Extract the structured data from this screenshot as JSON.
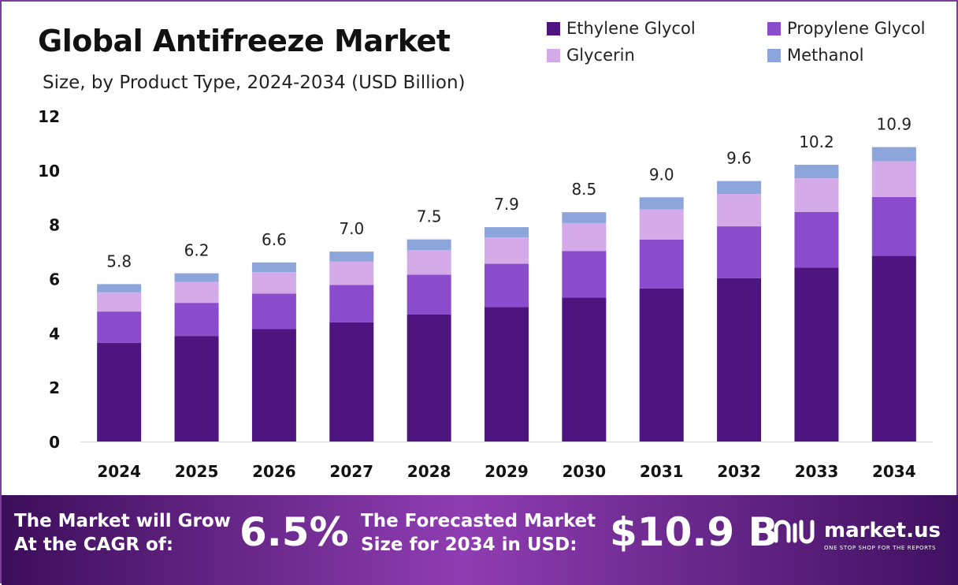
{
  "header": {
    "title": "Global Antifreeze Market",
    "subtitle": "Size, by Product Type, 2024-2034 (USD Billion)"
  },
  "legend": [
    {
      "label": "Ethylene Glycol",
      "color": "#4e1580"
    },
    {
      "label": "Propylene Glycol",
      "color": "#8a4bcc"
    },
    {
      "label": "Glycerin",
      "color": "#d4aae8"
    },
    {
      "label": "Methanol",
      "color": "#8ca6dc"
    }
  ],
  "chart_data": {
    "type": "bar",
    "stacked": true,
    "categories": [
      "2024",
      "2025",
      "2026",
      "2027",
      "2028",
      "2029",
      "2030",
      "2031",
      "2032",
      "2033",
      "2034"
    ],
    "series": [
      {
        "name": "Ethylene Glycol",
        "color": "#4e1580",
        "values": [
          3.64,
          3.89,
          4.14,
          4.39,
          4.68,
          4.96,
          5.31,
          5.64,
          6.02,
          6.41,
          6.84
        ]
      },
      {
        "name": "Propylene Glycol",
        "color": "#8a4bcc",
        "values": [
          1.15,
          1.22,
          1.31,
          1.38,
          1.47,
          1.59,
          1.71,
          1.8,
          1.91,
          2.05,
          2.17
        ]
      },
      {
        "name": "Glycerin",
        "color": "#d4aae8",
        "values": [
          0.71,
          0.77,
          0.79,
          0.86,
          0.9,
          0.97,
          1.03,
          1.12,
          1.19,
          1.24,
          1.32
        ]
      },
      {
        "name": "Methanol",
        "color": "#8ca6dc",
        "values": [
          0.3,
          0.32,
          0.36,
          0.37,
          0.4,
          0.38,
          0.4,
          0.44,
          0.48,
          0.5,
          0.52
        ]
      }
    ],
    "totals": [
      "5.8",
      "6.2",
      "6.6",
      "7.0",
      "7.5",
      "7.9",
      "8.5",
      "9.0",
      "9.6",
      "10.2",
      "10.9"
    ],
    "yticks": [
      "0",
      "2",
      "4",
      "6",
      "8",
      "10",
      "12"
    ],
    "ylim": [
      0,
      12
    ],
    "grid": false
  },
  "footer": {
    "cagr_line1": "The Market will Grow",
    "cagr_line2": "At the CAGR of:",
    "cagr_value": "6.5%",
    "forecast_line1": "The Forecasted Market",
    "forecast_line2": "Size for 2034 in USD:",
    "forecast_value": "$10.9 B",
    "logo_name": "market.us",
    "logo_tagline": "ONE STOP SHOP FOR THE REPORTS"
  }
}
